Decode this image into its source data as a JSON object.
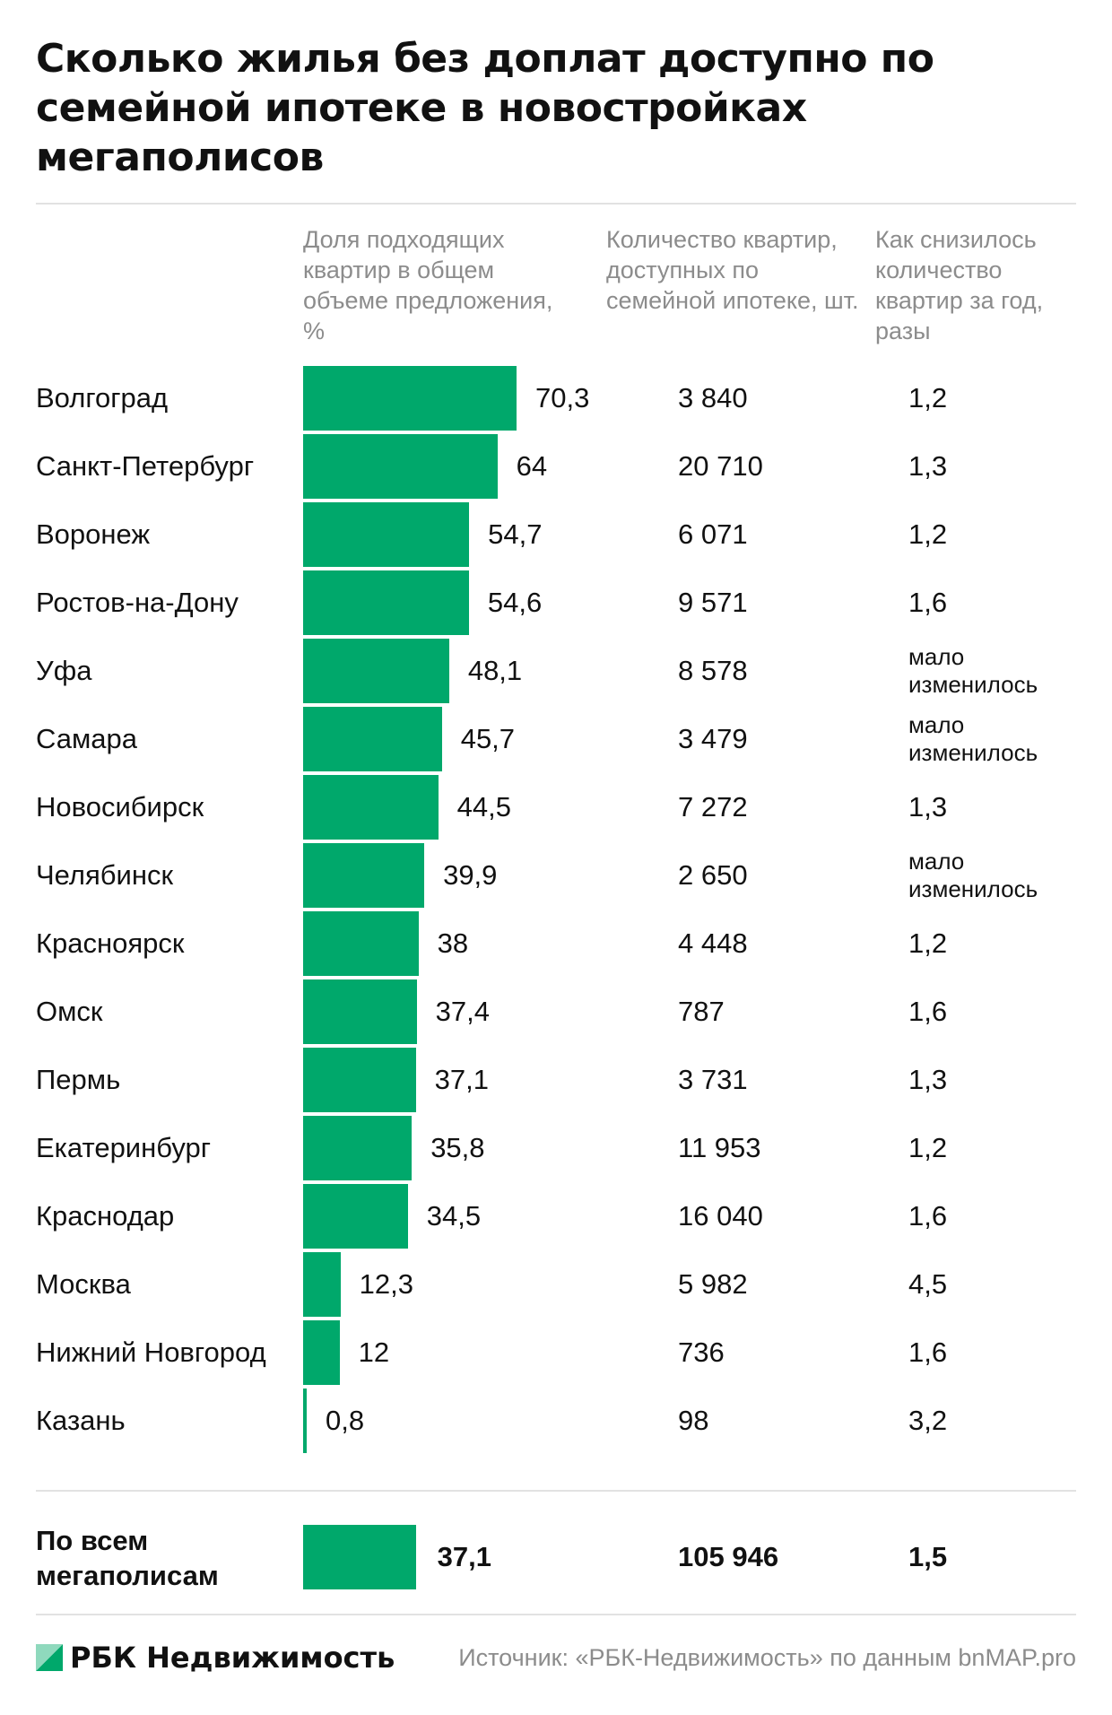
{
  "title": "Сколько жилья без доплат доступно по семейной ипотеке в новостройках мегаполисов",
  "columns": {
    "share": "Доля подходящих квартир в общем объеме предложения, %",
    "count": "Количество квартир, доступных по семейной ипотеке, шт.",
    "change": "Как снизилось количество квартир за год, разы"
  },
  "colors": {
    "bar": "#00a86b",
    "text": "#111111",
    "muted": "#8c8c8c",
    "rule": "#e2e2e2"
  },
  "chart_data": {
    "type": "bar",
    "orientation": "horizontal",
    "categories": [
      "Волгоград",
      "Санкт-Петербург",
      "Воронеж",
      "Ростов-на-Дону",
      "Уфа",
      "Самара",
      "Новосибирск",
      "Челябинск",
      "Красноярск",
      "Омск",
      "Пермь",
      "Екатеринбург",
      "Краснодар",
      "Москва",
      "Нижний Новгород",
      "Казань"
    ],
    "values": [
      70.3,
      64,
      54.7,
      54.6,
      48.1,
      45.7,
      44.5,
      39.9,
      38,
      37.4,
      37.1,
      35.8,
      34.5,
      12.3,
      12,
      0.8
    ],
    "value_labels": [
      "70,3",
      "64",
      "54,7",
      "54,6",
      "48,1",
      "45,7",
      "44,5",
      "39,9",
      "38",
      "37,4",
      "37,1",
      "35,8",
      "34,5",
      "12,3",
      "12",
      "0,8"
    ],
    "counts": [
      "3 840",
      "20 710",
      "6 071",
      "9 571",
      "8 578",
      "3 479",
      "7 272",
      "2 650",
      "4 448",
      "787",
      "3 731",
      "11 953",
      "16 040",
      "5 982",
      "736",
      "98"
    ],
    "change": [
      "1,2",
      "1,3",
      "1,2",
      "1,6",
      "мало изменилось",
      "мало изменилось",
      "1,3",
      "мало изменилось",
      "1,2",
      "1,6",
      "1,3",
      "1,2",
      "1,6",
      "4,5",
      "1,6",
      "3,2"
    ],
    "xlim": [
      0,
      70.3
    ],
    "total": {
      "label": "По всем мегаполисам",
      "value": 37.1,
      "value_label": "37,1",
      "count": "105 946",
      "change": "1,5"
    }
  },
  "footer": {
    "logo": "РБК Недвижимость",
    "source": "Источник: «РБК-Недвижимость» по данным bnMAP.pro"
  }
}
